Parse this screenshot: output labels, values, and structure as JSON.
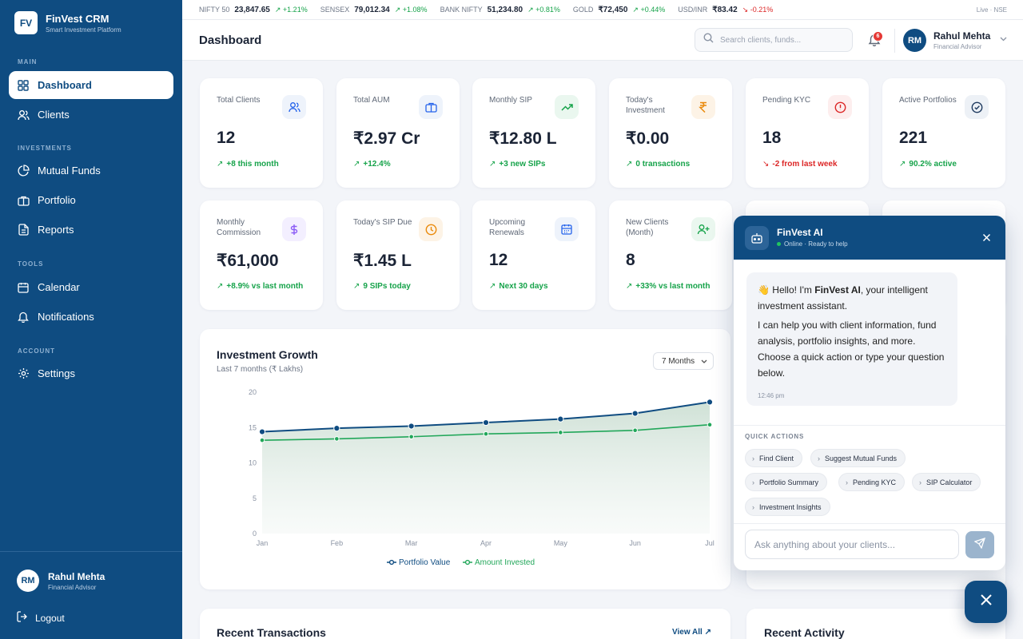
{
  "app": {
    "logo_text": "FV",
    "name": "FinVest CRM",
    "tagline": "Smart Investment Platform"
  },
  "sidebar": {
    "sections": {
      "main": "MAIN",
      "investments": "INVESTMENTS",
      "tools": "TOOLS",
      "account": "ACCOUNT"
    },
    "items": [
      {
        "label": "Dashboard",
        "icon": "grid-icon",
        "active": true
      },
      {
        "label": "Clients",
        "icon": "users-icon"
      },
      {
        "label": "Mutual Funds",
        "icon": "pie-chart-icon"
      },
      {
        "label": "Portfolio",
        "icon": "briefcase-icon"
      },
      {
        "label": "Reports",
        "icon": "file-text-icon"
      },
      {
        "label": "Calendar",
        "icon": "calendar-icon"
      },
      {
        "label": "Notifications",
        "icon": "bell-icon"
      },
      {
        "label": "Settings",
        "icon": "gear-icon"
      }
    ],
    "user": {
      "initials": "RM",
      "name": "Rahul Mehta",
      "role": "Financial Advisor"
    },
    "logout_label": "Logout"
  },
  "ticker": {
    "items": [
      {
        "name": "NIFTY 50",
        "value": "23,847.65",
        "change": "+1.21%",
        "direction": "up"
      },
      {
        "name": "SENSEX",
        "value": "79,012.34",
        "change": "+1.08%",
        "direction": "up"
      },
      {
        "name": "BANK NIFTY",
        "value": "51,234.80",
        "change": "+0.81%",
        "direction": "up"
      },
      {
        "name": "GOLD",
        "value": "₹72,450",
        "change": "+0.44%",
        "direction": "up"
      },
      {
        "name": "USD/INR",
        "value": "₹83.42",
        "change": "-0.21%",
        "direction": "down"
      }
    ],
    "live_label": "Live · NSE"
  },
  "header": {
    "title": "Dashboard",
    "search_placeholder": "Search clients, funds...",
    "notification_count": "6",
    "user": {
      "initials": "RM",
      "name": "Rahul Mehta",
      "role": "Financial Advisor"
    }
  },
  "stats": [
    {
      "label": "Total Clients",
      "value": "12",
      "sub": "+8 this month",
      "trend": "up",
      "icon": "users-icon",
      "icon_color": "#2563eb",
      "icon_bg": "#eef3fb"
    },
    {
      "label": "Total AUM",
      "value": "₹2.97 Cr",
      "sub": "+12.4%",
      "trend": "up",
      "icon": "briefcase-icon",
      "icon_color": "#2563eb",
      "icon_bg": "#eef3fb"
    },
    {
      "label": "Monthly SIP",
      "value": "₹12.80 L",
      "sub": "+3 new SIPs",
      "trend": "up",
      "icon": "trending-up-icon",
      "icon_color": "#16a34a",
      "icon_bg": "#eaf7ef"
    },
    {
      "label": "Today's Investment",
      "value": "₹0.00",
      "sub": "0 transactions",
      "trend": "up",
      "icon": "rupee-icon",
      "icon_color": "#ea8a0c",
      "icon_bg": "#fdf3e6"
    },
    {
      "label": "Pending KYC",
      "value": "18",
      "sub": "-2 from last week",
      "trend": "down",
      "icon": "alert-circle-icon",
      "icon_color": "#dc2626",
      "icon_bg": "#fdeeee"
    },
    {
      "label": "Active Portfolios",
      "value": "221",
      "sub": "90.2% active",
      "trend": "up",
      "icon": "check-circle-icon",
      "icon_color": "#1e3a5f",
      "icon_bg": "#edf1f6"
    },
    {
      "label": "Monthly Commission",
      "value": "₹61,000",
      "sub": "+8.9% vs last month",
      "trend": "up",
      "icon": "dollar-icon",
      "icon_color": "#8b5cf6",
      "icon_bg": "#f3efff"
    },
    {
      "label": "Today's SIP Due",
      "value": "₹1.45 L",
      "sub": "9 SIPs today",
      "trend": "up",
      "icon": "clock-icon",
      "icon_color": "#ea8a0c",
      "icon_bg": "#fdf3e6"
    },
    {
      "label": "Upcoming Renewals",
      "value": "12",
      "sub": "Next 30 days",
      "trend": "up",
      "icon": "calendar-icon",
      "icon_color": "#2563eb",
      "icon_bg": "#eef3fb"
    },
    {
      "label": "New Clients (Month)",
      "value": "8",
      "sub": "+33% vs last month",
      "trend": "up",
      "icon": "user-plus-icon",
      "icon_color": "#16a34a",
      "icon_bg": "#eaf7ef"
    }
  ],
  "growth": {
    "title": "Investment Growth",
    "subtitle": "Last 7 months (₹ Lakhs)",
    "range_select": "7 Months"
  },
  "chart_data": {
    "type": "line",
    "categories": [
      "Jan",
      "Feb",
      "Mar",
      "Apr",
      "May",
      "Jun",
      "Jul"
    ],
    "series": [
      {
        "name": "Portfolio Value",
        "values": [
          14.4,
          14.9,
          15.2,
          15.7,
          16.2,
          17.0,
          18.6
        ],
        "color": "#0f4c81"
      },
      {
        "name": "Amount Invested",
        "values": [
          13.2,
          13.4,
          13.7,
          14.1,
          14.3,
          14.6,
          15.4
        ],
        "color": "#22a75a"
      }
    ],
    "ylim": [
      0,
      20
    ],
    "yticks": [
      0,
      5,
      10,
      15,
      20
    ],
    "legend_position": "bottom"
  },
  "transactions": {
    "title": "Recent Transactions",
    "view_all": "View All"
  },
  "activity": {
    "title": "Recent Activity"
  },
  "ai": {
    "title": "FinVest AI",
    "status": "Online · Ready to help",
    "greeting_emoji": "👋",
    "greeting_pre": "Hello! I'm ",
    "greeting_name": "FinVest AI",
    "greeting_post": ", your intelligent investment assistant.",
    "message": "I can help you with client information, fund analysis, portfolio insights, and more. Choose a quick action or type your question below.",
    "time": "12:46 pm",
    "quick_actions_label": "QUICK ACTIONS",
    "quick_actions": [
      "Find Client",
      "Suggest Mutual Funds",
      "Portfolio Summary",
      "Pending KYC",
      "SIP Calculator",
      "Investment Insights"
    ],
    "input_placeholder": "Ask anything about your clients..."
  }
}
